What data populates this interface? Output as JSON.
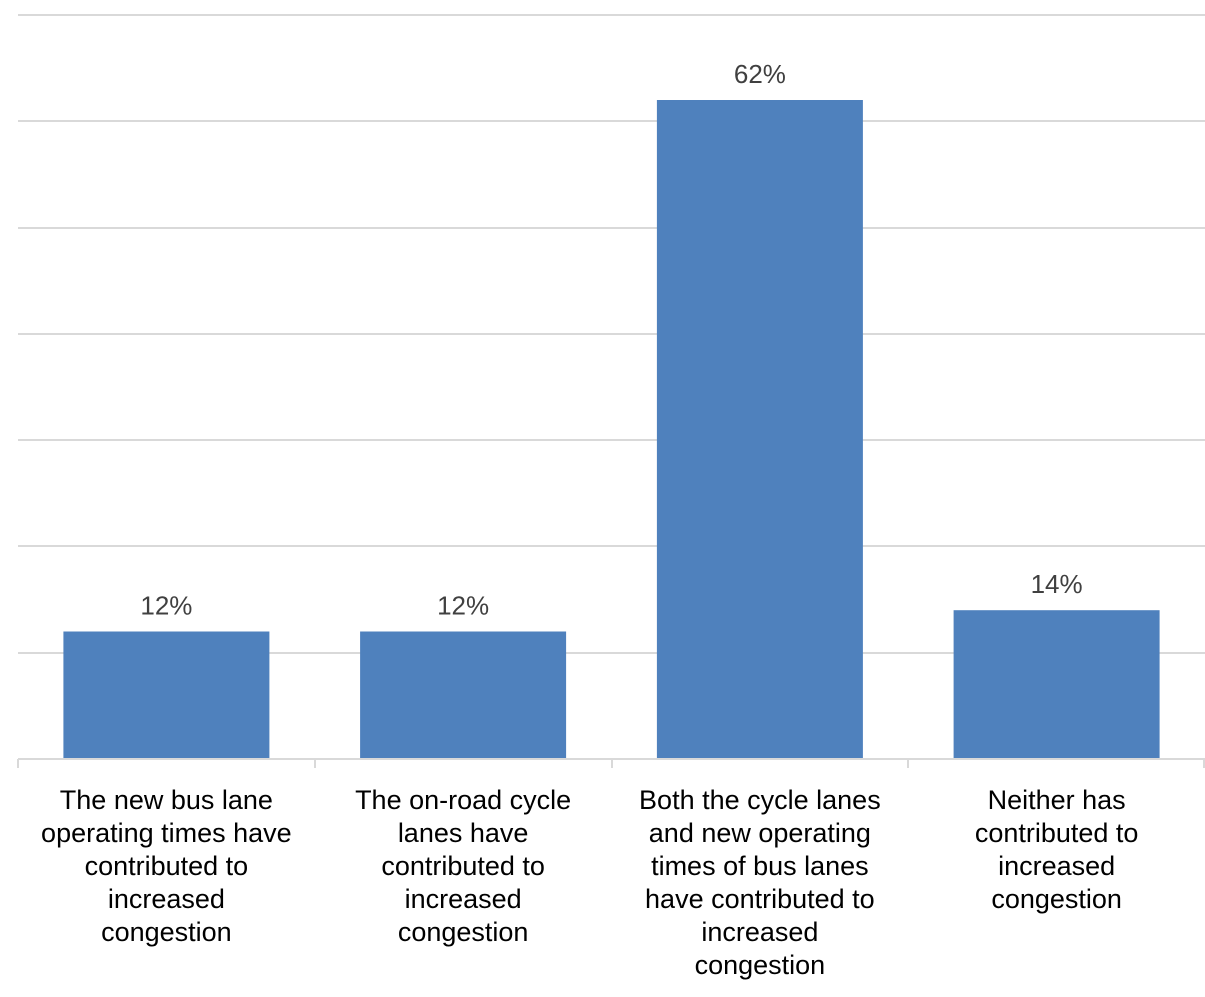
{
  "chart_data": {
    "type": "bar",
    "categories": [
      "The new bus lane operating times have contributed to increased congestion",
      "The on-road cycle lanes have contributed to increased congestion",
      "Both the cycle lanes and new operating times of bus lanes have contributed to increased congestion",
      "Neither has contributed to increased congestion"
    ],
    "values": [
      12,
      12,
      62,
      14
    ],
    "value_labels": [
      "12%",
      "12%",
      "62%",
      "14%"
    ],
    "ylim": [
      0,
      70
    ],
    "grid_step": 10,
    "grid": true,
    "y_tick_labels_shown": false,
    "legend": "none",
    "bar_color": "#4f81bd",
    "title": "",
    "xlabel": "",
    "ylabel": ""
  }
}
